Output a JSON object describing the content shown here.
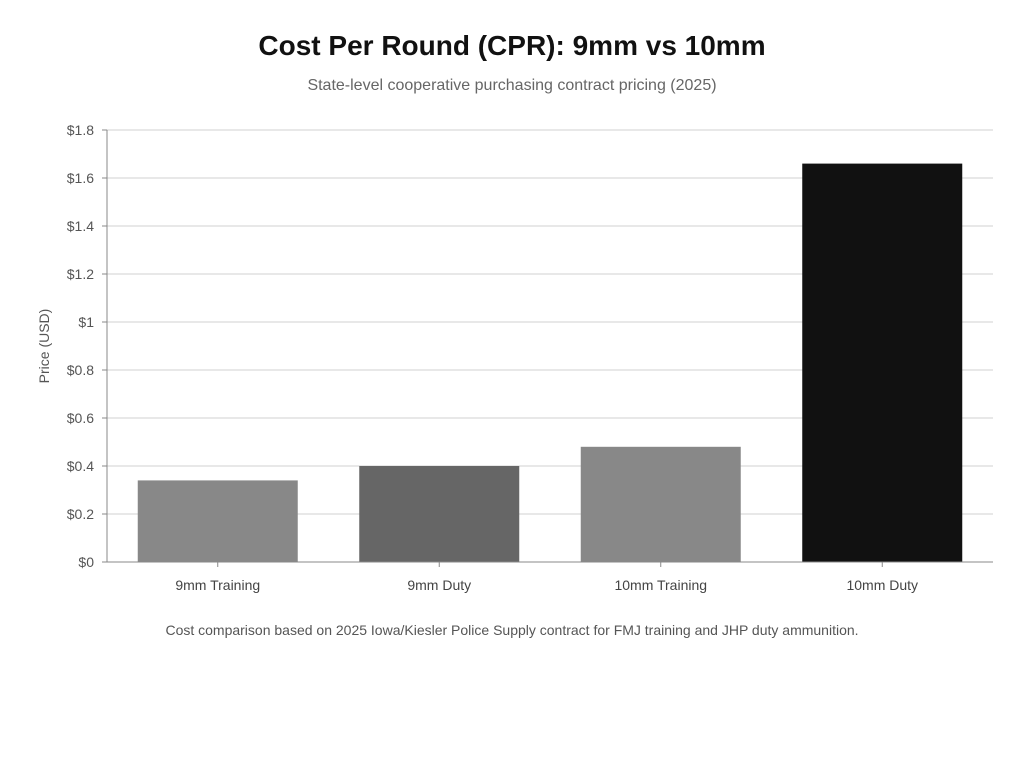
{
  "chart_data": {
    "type": "bar",
    "title": "Cost Per Round (CPR): 9mm vs 10mm",
    "subtitle": "State-level cooperative purchasing contract pricing (2025)",
    "xlabel": "",
    "ylabel": "Price (USD)",
    "categories": [
      "9mm Training",
      "9mm Duty",
      "10mm Training",
      "10mm Duty"
    ],
    "values": [
      0.34,
      0.4,
      0.48,
      1.66
    ],
    "colors": [
      "#888888",
      "#666666",
      "#888888",
      "#111111"
    ],
    "ylim": [
      0,
      1.8
    ],
    "yticks": [
      0,
      0.2,
      0.4,
      0.6,
      0.8,
      1,
      1.2,
      1.4,
      1.6,
      1.8
    ],
    "ytick_labels": [
      "$0",
      "$0.2",
      "$0.4",
      "$0.6",
      "$0.8",
      "$1",
      "$1.2",
      "$1.4",
      "$1.6",
      "$1.8"
    ],
    "grid": true,
    "footnote": "Cost comparison based on 2025 Iowa/Kiesler Police Supply contract for FMJ training and JHP duty ammunition."
  }
}
